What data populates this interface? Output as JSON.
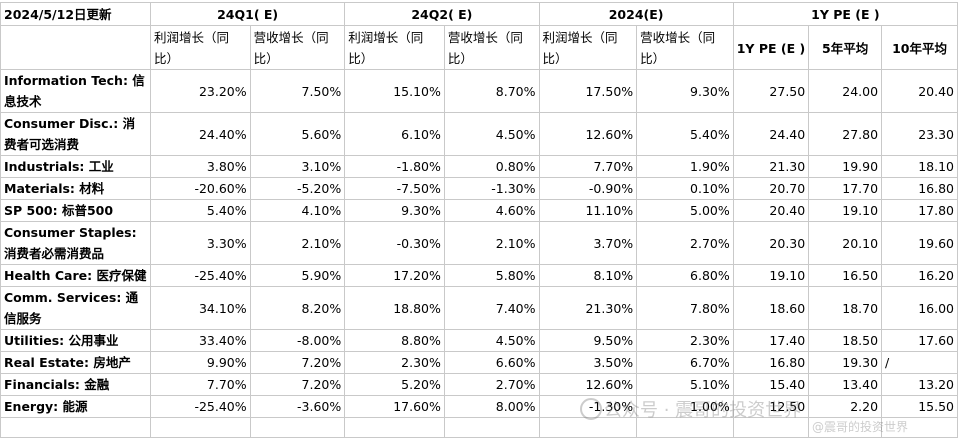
{
  "header": {
    "date": "2024/5/12日更新",
    "groups": [
      "24Q1( E)",
      "24Q2( E)",
      "2024(E)",
      "1Y PE (E )"
    ],
    "sub_profit": "利润增长（同比）",
    "sub_revenue": "营收增长（同比）",
    "pe_cols": [
      "1Y PE (E )",
      "5年平均",
      "10年平均"
    ]
  },
  "rows": [
    {
      "label": "Information Tech: 信息技术",
      "v": [
        "23.20%",
        "7.50%",
        "15.10%",
        "8.70%",
        "17.50%",
        "9.30%",
        "27.50",
        "24.00",
        "20.40"
      ]
    },
    {
      "label": "Consumer Disc.: 消费者可选消费",
      "v": [
        "24.40%",
        "5.60%",
        "6.10%",
        "4.50%",
        "12.60%",
        "5.40%",
        "24.40",
        "27.80",
        "23.30"
      ]
    },
    {
      "label": "Industrials: 工业",
      "v": [
        "3.80%",
        "3.10%",
        "-1.80%",
        "0.80%",
        "7.70%",
        "1.90%",
        "21.30",
        "19.90",
        "18.10"
      ]
    },
    {
      "label": "Materials: 材料",
      "v": [
        "-20.60%",
        "-5.20%",
        "-7.50%",
        "-1.30%",
        "-0.90%",
        "0.10%",
        "20.70",
        "17.70",
        "16.80"
      ]
    },
    {
      "label": "SP 500: 标普500",
      "v": [
        "5.40%",
        "4.10%",
        "9.30%",
        "4.60%",
        "11.10%",
        "5.00%",
        "20.40",
        "19.10",
        "17.80"
      ]
    },
    {
      "label": "Consumer Staples: 消费者必需消费品",
      "v": [
        "3.30%",
        "2.10%",
        "-0.30%",
        "2.10%",
        "3.70%",
        "2.70%",
        "20.30",
        "20.10",
        "19.60"
      ]
    },
    {
      "label": "Health Care: 医疗保健",
      "v": [
        "-25.40%",
        "5.90%",
        "17.20%",
        "5.80%",
        "8.10%",
        "6.80%",
        "19.10",
        "16.50",
        "16.20"
      ]
    },
    {
      "label": "Comm. Services: 通信服务",
      "v": [
        "34.10%",
        "8.20%",
        "18.80%",
        "7.40%",
        "21.30%",
        "7.80%",
        "18.60",
        "18.70",
        "16.00"
      ]
    },
    {
      "label": "Utilities: 公用事业",
      "v": [
        "33.40%",
        "-8.00%",
        "8.80%",
        "4.50%",
        "9.50%",
        "2.30%",
        "17.40",
        "18.50",
        "17.60"
      ]
    },
    {
      "label": "Real Estate: 房地产",
      "v": [
        "9.90%",
        "7.20%",
        "2.30%",
        "6.60%",
        "3.50%",
        "6.70%",
        "16.80",
        "19.30",
        "/"
      ]
    },
    {
      "label": "Financials: 金融",
      "v": [
        "7.70%",
        "7.20%",
        "5.20%",
        "2.70%",
        "12.60%",
        "5.10%",
        "15.40",
        "13.40",
        "13.20"
      ]
    },
    {
      "label": "Energy: 能源",
      "v": [
        "-25.40%",
        "-3.60%",
        "17.60%",
        "8.00%",
        "-1.30%",
        "1.00%",
        "12.50",
        "2.20",
        "15.50"
      ]
    }
  ],
  "watermark": {
    "account": "公众号 · 震哥的投资世界",
    "handle": "@震哥的投资世界"
  }
}
